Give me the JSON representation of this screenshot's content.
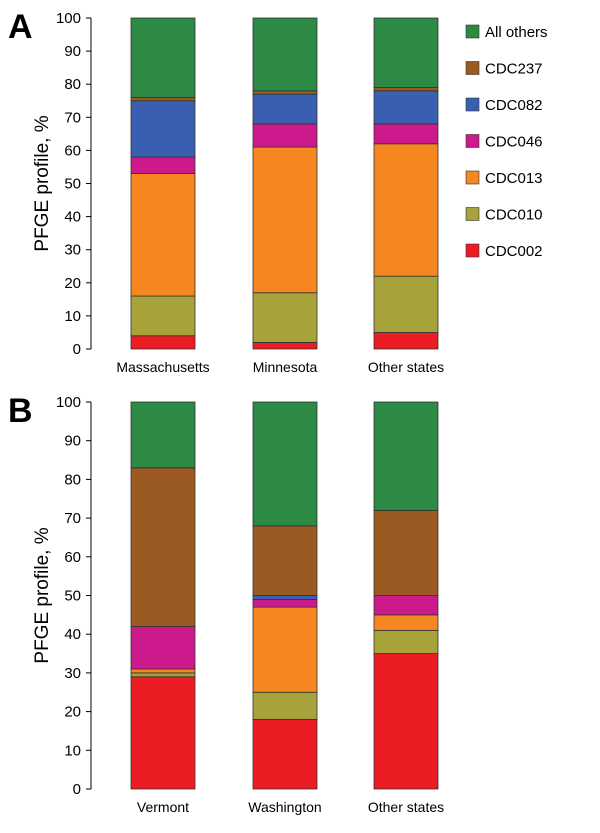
{
  "colors": {
    "CDC002": "#ec1c24",
    "CDC010": "#a8a23a",
    "CDC013": "#f6861f",
    "CDC046": "#cc1a8c",
    "CDC082": "#3a5fb0",
    "CDC237": "#9b5a22",
    "All others": "#2c8a45"
  },
  "legend": [
    "All others",
    "CDC237",
    "CDC082",
    "CDC046",
    "CDC013",
    "CDC010",
    "CDC002"
  ],
  "chart_data": [
    {
      "type": "bar",
      "stacked": true,
      "panel": "A",
      "ylabel": "PFGE profile, %",
      "xlabel": "",
      "ylim": [
        0,
        100
      ],
      "yticks": [
        0,
        10,
        20,
        30,
        40,
        50,
        60,
        70,
        80,
        90,
        100
      ],
      "categories": [
        "Massachusetts",
        "Minnesota",
        "Other states"
      ],
      "legend_position": "right",
      "series": [
        {
          "name": "CDC002",
          "values": [
            4,
            2,
            5
          ]
        },
        {
          "name": "CDC010",
          "values": [
            12,
            15,
            17
          ]
        },
        {
          "name": "CDC013",
          "values": [
            37,
            44,
            40
          ]
        },
        {
          "name": "CDC046",
          "values": [
            5,
            7,
            6
          ]
        },
        {
          "name": "CDC082",
          "values": [
            17,
            9,
            10
          ]
        },
        {
          "name": "CDC237",
          "values": [
            1,
            1,
            1
          ]
        },
        {
          "name": "All others",
          "values": [
            24,
            22,
            21
          ]
        }
      ]
    },
    {
      "type": "bar",
      "stacked": true,
      "panel": "B",
      "ylabel": "PFGE profile, %",
      "xlabel": "",
      "ylim": [
        0,
        100
      ],
      "yticks": [
        0,
        10,
        20,
        30,
        40,
        50,
        60,
        70,
        80,
        90,
        100
      ],
      "categories": [
        "Vermont",
        "Washington",
        "Other states"
      ],
      "series": [
        {
          "name": "CDC002",
          "values": [
            29,
            18,
            35
          ]
        },
        {
          "name": "CDC010",
          "values": [
            1,
            7,
            6
          ]
        },
        {
          "name": "CDC013",
          "values": [
            1,
            22,
            4
          ]
        },
        {
          "name": "CDC046",
          "values": [
            11,
            2,
            5
          ]
        },
        {
          "name": "CDC082",
          "values": [
            0,
            1,
            0
          ]
        },
        {
          "name": "CDC237",
          "values": [
            41,
            18,
            22
          ]
        },
        {
          "name": "All others",
          "values": [
            17,
            32,
            28
          ]
        }
      ]
    }
  ]
}
